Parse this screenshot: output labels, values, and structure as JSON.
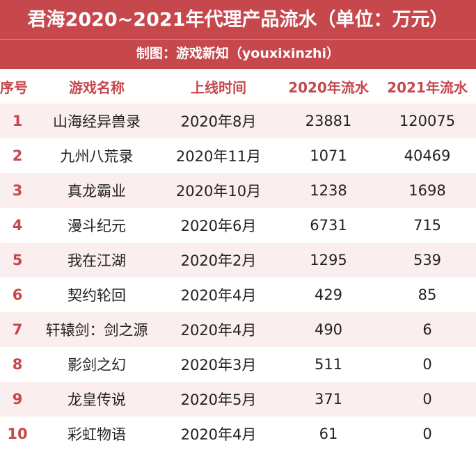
{
  "header": {
    "title": "君海2020~2021年代理产品流水（单位：万元）",
    "subtitle": "制图：游戏新知（youxixinzhi）"
  },
  "chart_data": {
    "type": "table",
    "columns": [
      "序号",
      "游戏名称",
      "上线时间",
      "2020年流水",
      "2021年流水"
    ],
    "rows": [
      [
        "1",
        "山海经异兽录",
        "2020年8月",
        "23881",
        "120075"
      ],
      [
        "2",
        "九州八荒录",
        "2020年11月",
        "1071",
        "40469"
      ],
      [
        "3",
        "真龙霸业",
        "2020年10月",
        "1238",
        "1698"
      ],
      [
        "4",
        "漫斗纪元",
        "2020年6月",
        "6731",
        "715"
      ],
      [
        "5",
        "我在江湖",
        "2020年2月",
        "1295",
        "539"
      ],
      [
        "6",
        "契约轮回",
        "2020年4月",
        "429",
        "85"
      ],
      [
        "7",
        "轩辕剑：剑之源",
        "2020年4月",
        "490",
        "6"
      ],
      [
        "8",
        "影剑之幻",
        "2020年3月",
        "511",
        "0"
      ],
      [
        "9",
        "龙皇传说",
        "2020年5月",
        "371",
        "0"
      ],
      [
        "10",
        "彩虹物语",
        "2020年4月",
        "61",
        "0"
      ]
    ]
  },
  "colors": {
    "accent": "#c6474c",
    "row_alt": "#fbeeee",
    "text": "#222222"
  }
}
